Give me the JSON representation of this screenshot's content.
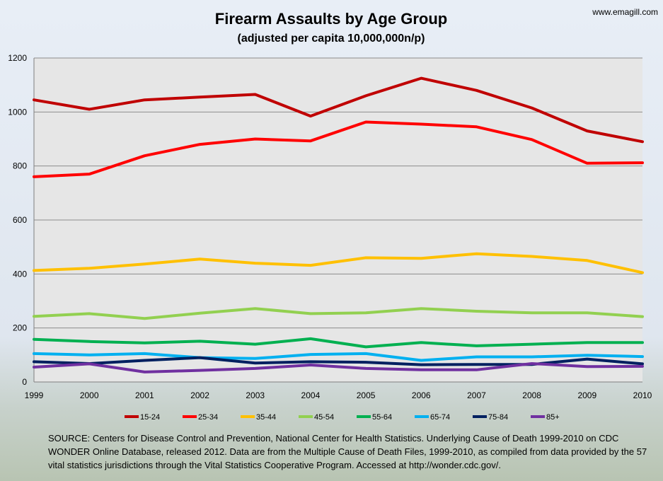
{
  "website": "www.emagill.com",
  "source_text": "SOURCE:  Centers for Disease Control and Prevention, National Center for Health Statistics.  Underlying Cause of Death 1999-2010  on CDC WONDER Online Database, released 2012.  Data are from the Multiple Cause of Death Files, 1999-2010,  as compiled from data provided by the 57 vital statistics jurisdictions through the Vital Statistics Cooperative Program.  Accessed at http://wonder.cdc.gov/.",
  "chart_data": {
    "type": "line",
    "title": "Firearm Assaults by Age Group",
    "subtitle": "(adjusted per capita 10,000,000n/p)",
    "xlabel": "",
    "ylabel": "",
    "ylim": [
      0,
      1200
    ],
    "yticks": [
      0,
      200,
      400,
      600,
      800,
      1000,
      1200
    ],
    "grid": true,
    "legend_position": "bottom",
    "categories": [
      "1999",
      "2000",
      "2001",
      "2002",
      "2003",
      "2004",
      "2005",
      "2006",
      "2007",
      "2008",
      "2009",
      "2010"
    ],
    "series": [
      {
        "name": "15-24",
        "color": "#c00000",
        "values": [
          1045,
          1010,
          1045,
          1055,
          1065,
          985,
          1060,
          1125,
          1080,
          1015,
          930,
          890
        ]
      },
      {
        "name": "25-34",
        "color": "#ff0000",
        "values": [
          760,
          770,
          838,
          880,
          900,
          893,
          963,
          955,
          945,
          898,
          810,
          812
        ]
      },
      {
        "name": "35-44",
        "color": "#ffc000",
        "values": [
          413,
          421,
          437,
          455,
          440,
          432,
          460,
          458,
          475,
          465,
          450,
          405
        ]
      },
      {
        "name": "45-54",
        "color": "#92d050",
        "values": [
          243,
          253,
          235,
          255,
          272,
          253,
          256,
          272,
          262,
          256,
          256,
          242
        ]
      },
      {
        "name": "55-64",
        "color": "#00b050",
        "values": [
          158,
          150,
          145,
          151,
          140,
          160,
          130,
          146,
          134,
          140,
          146,
          146
        ]
      },
      {
        "name": "65-74",
        "color": "#00b0f0",
        "values": [
          105,
          100,
          105,
          90,
          87,
          102,
          105,
          80,
          93,
          93,
          99,
          94
        ]
      },
      {
        "name": "75-84",
        "color": "#002060",
        "values": [
          75,
          68,
          80,
          90,
          70,
          75,
          73,
          64,
          65,
          65,
          85,
          67
        ]
      },
      {
        "name": "85+",
        "color": "#7030a0",
        "values": [
          55,
          67,
          37,
          43,
          50,
          63,
          50,
          45,
          45,
          68,
          57,
          58
        ]
      }
    ]
  }
}
